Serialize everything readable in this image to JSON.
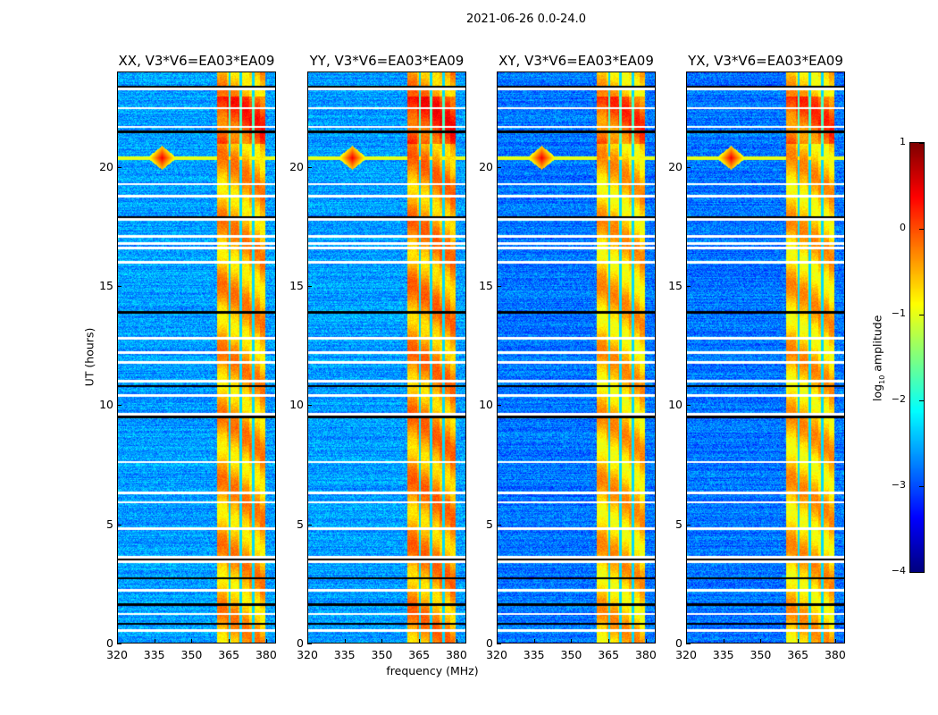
{
  "suptitle": "2021-06-26 0.0-24.0",
  "chart_data": {
    "type": "heatmap",
    "title": "2021-06-26 0.0-24.0",
    "xlabel": "frequency (MHz)",
    "ylabel": "UT (hours)",
    "xlim": [
      320,
      384
    ],
    "ylim": [
      0,
      24
    ],
    "xticks": [
      320,
      335,
      350,
      365,
      380
    ],
    "yticks": [
      0,
      5,
      10,
      15,
      20
    ],
    "colorbar": {
      "label_pre": "log",
      "label_sub": "10",
      "label_post": " amplitude",
      "range": [
        -4,
        1
      ],
      "ticks": [
        1,
        0,
        -1,
        -2,
        -3,
        -4
      ],
      "tick_labels": [
        "1",
        "0",
        "−1",
        "−2",
        "−3",
        "−4"
      ],
      "colormap": "jet"
    },
    "panels": [
      {
        "title": "XX, V3*V6=EA03*EA09",
        "band_level": -0.5,
        "bg_level": -2.6
      },
      {
        "title": "YY, V3*V6=EA03*EA09",
        "band_level": -0.4,
        "bg_level": -2.6
      },
      {
        "title": "XY, V3*V6=EA03*EA09",
        "band_level": -0.6,
        "bg_level": -2.8
      },
      {
        "title": "YX, V3*V6=EA03*EA09",
        "band_level": -0.6,
        "bg_level": -2.8
      }
    ],
    "strong_band_mhz": [
      360.5,
      380
    ],
    "band_gaps_mhz": [
      365.5,
      370,
      375
    ],
    "rfi_line_hour": 20.4,
    "rfi_spike_mhz": 338,
    "flagged_hours_white": [
      23.3,
      22.5,
      21.7,
      19.3,
      18.8,
      17.8,
      17.1,
      16.8,
      16.6,
      16.0,
      12.8,
      12.2,
      11.8,
      11.0,
      10.4,
      9.6,
      7.6,
      6.3,
      5.9,
      4.8,
      3.6,
      3.4,
      2.2,
      1.2,
      0.5
    ],
    "flagged_hours_black": [
      23.4,
      21.5,
      17.9,
      13.9,
      10.8,
      9.5,
      3.5,
      2.7,
      1.6,
      0.8
    ]
  }
}
